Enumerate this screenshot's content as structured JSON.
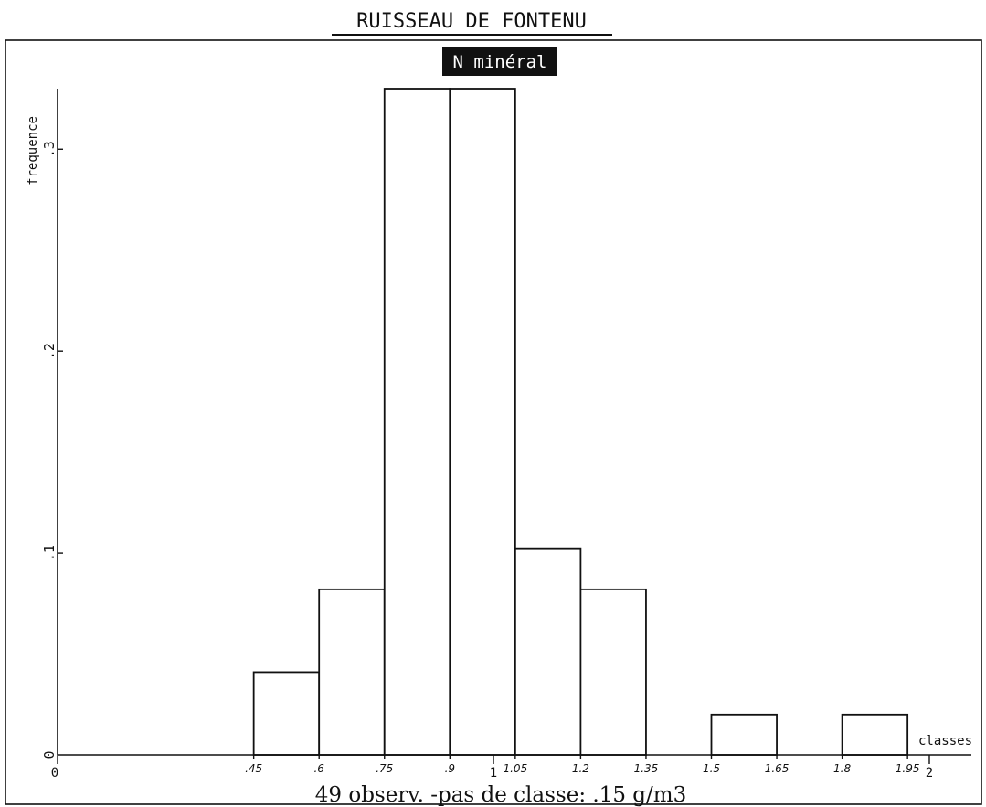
{
  "chart_data": {
    "type": "bar",
    "title": "RUISSEAU DE FONTENU",
    "subtitle": "N minéral",
    "xlabel": "classes",
    "ylabel": "frequence",
    "footer": "49 observ. -pas de classe: .15 g/m3",
    "xlim": [
      0,
      2.05
    ],
    "ylim": [
      0,
      0.33
    ],
    "bin_width": 0.15,
    "bins": [
      {
        "start": 0.45,
        "end": 0.6,
        "value": 0.041
      },
      {
        "start": 0.6,
        "end": 0.75,
        "value": 0.082
      },
      {
        "start": 0.75,
        "end": 0.9,
        "value": 0.33
      },
      {
        "start": 0.9,
        "end": 1.05,
        "value": 0.33
      },
      {
        "start": 1.05,
        "end": 1.2,
        "value": 0.102
      },
      {
        "start": 1.2,
        "end": 1.35,
        "value": 0.082
      },
      {
        "start": 1.5,
        "end": 1.65,
        "value": 0.02
      },
      {
        "start": 1.8,
        "end": 1.95,
        "value": 0.02
      }
    ],
    "x_tick_labels": [
      {
        "v": 0.45,
        "label": ".45"
      },
      {
        "v": 0.6,
        "label": ".6"
      },
      {
        "v": 0.75,
        "label": ".75"
      },
      {
        "v": 0.9,
        "label": ".9"
      },
      {
        "v": 1.05,
        "label": "1.05"
      },
      {
        "v": 1.2,
        "label": "1.2"
      },
      {
        "v": 1.35,
        "label": "1.35"
      },
      {
        "v": 1.5,
        "label": "1.5"
      },
      {
        "v": 1.65,
        "label": "1.65"
      },
      {
        "v": 1.8,
        "label": "1.8"
      },
      {
        "v": 1.95,
        "label": "1.95"
      }
    ],
    "x_major_labels": [
      {
        "v": 0,
        "label": "0"
      },
      {
        "v": 1,
        "label": "1"
      },
      {
        "v": 2,
        "label": "2"
      }
    ],
    "y_ticks": [
      {
        "v": 0,
        "label": "0"
      },
      {
        "v": 0.1,
        "label": ".1"
      },
      {
        "v": 0.2,
        "label": ".2"
      },
      {
        "v": 0.3,
        "label": ".3"
      }
    ],
    "grid": false,
    "legend": "none"
  }
}
